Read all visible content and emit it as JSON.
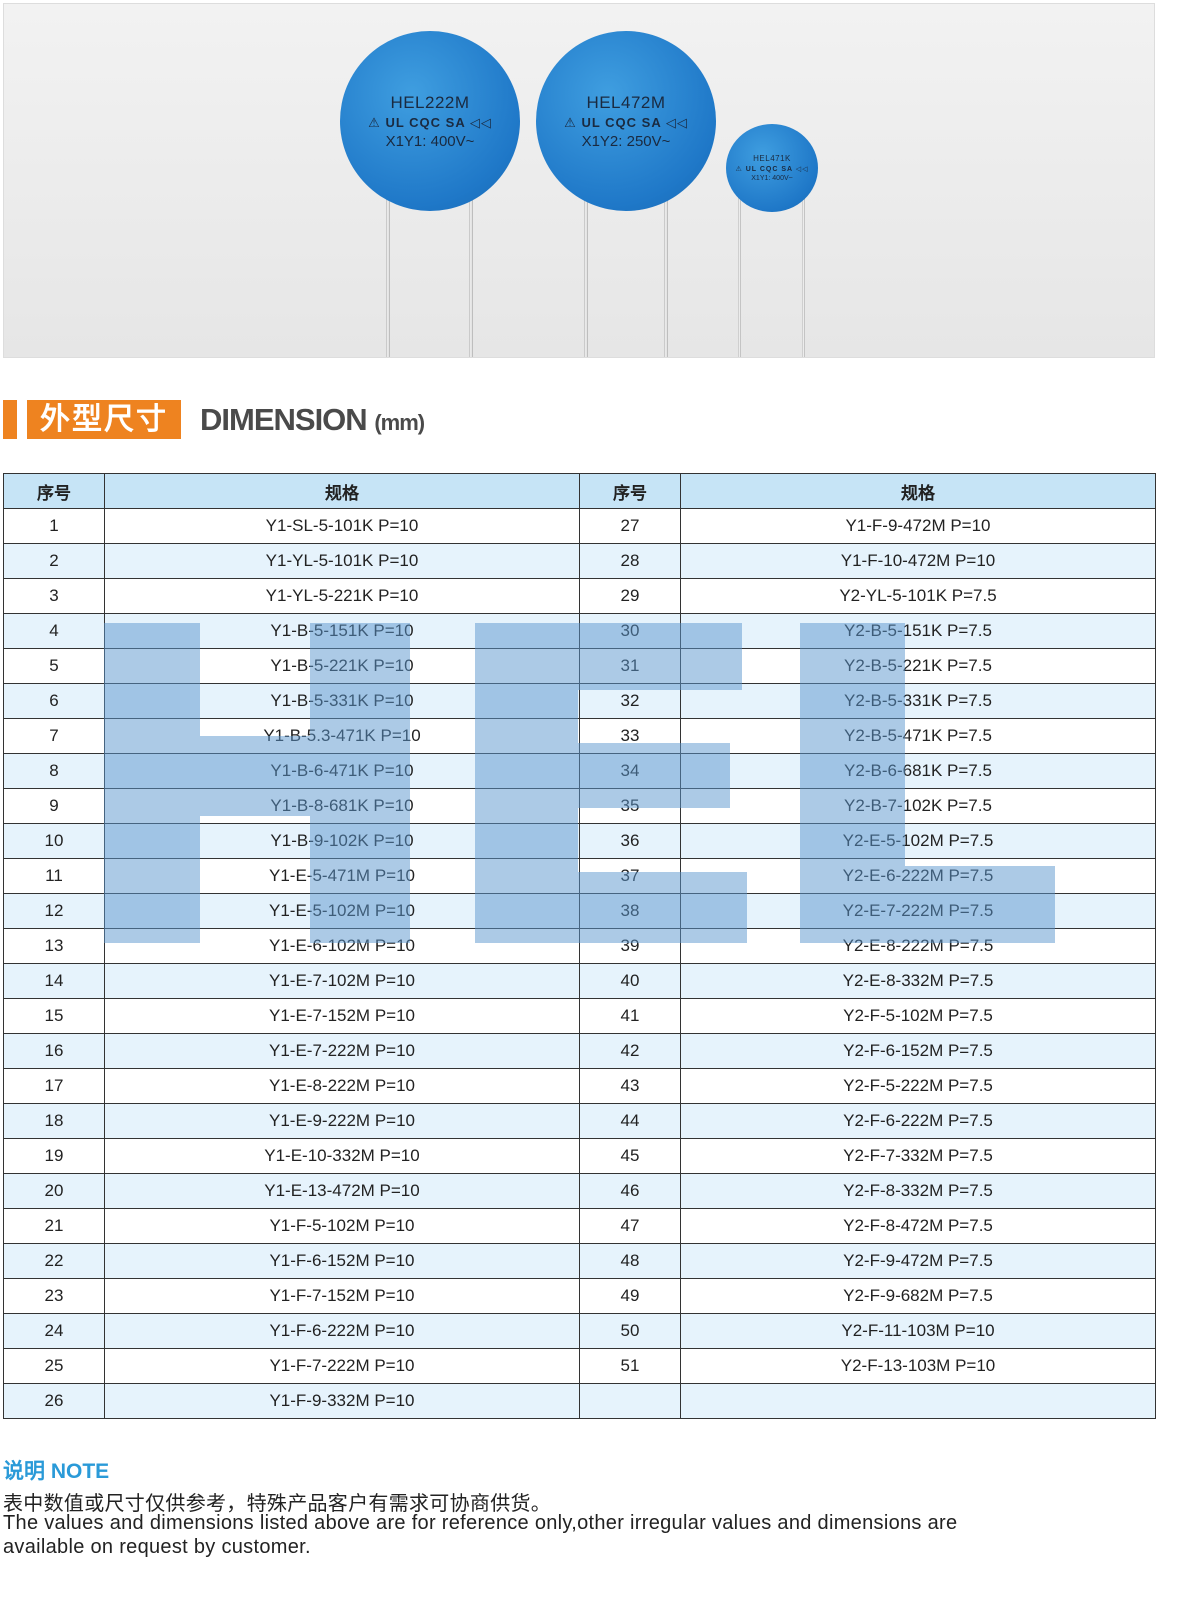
{
  "photo": {
    "capacitors": [
      {
        "line1": "HEL222M",
        "line2": "⚠ UL CQC SA ◁◁",
        "line3": "X1Y1: 400V~"
      },
      {
        "line1": "HEL472M",
        "line2": "⚠ UL CQC SA ◁◁",
        "line3": "X1Y2: 250V~"
      },
      {
        "line1": "HEL471K",
        "line2": "⚠ UL CQC SA ◁◁",
        "line3": "X1Y1: 400V~"
      }
    ],
    "color": "#1f78c8"
  },
  "title": {
    "cn": "外型尺寸",
    "en": "DIMENSION",
    "unit": "(mm)",
    "accent": "#ee8320"
  },
  "table": {
    "headers": [
      "序号",
      "规格",
      "序号",
      "规格"
    ],
    "left": [
      [
        "1",
        "Y1-SL-5-101K P=10"
      ],
      [
        "2",
        "Y1-YL-5-101K P=10"
      ],
      [
        "3",
        "Y1-YL-5-221K P=10"
      ],
      [
        "4",
        "Y1-B-5-151K P=10"
      ],
      [
        "5",
        "Y1-B-5-221K P=10"
      ],
      [
        "6",
        "Y1-B-5-331K P=10"
      ],
      [
        "7",
        "Y1-B-5.3-471K P=10"
      ],
      [
        "8",
        "Y1-B-6-471K P=10"
      ],
      [
        "9",
        "Y1-B-8-681K P=10"
      ],
      [
        "10",
        "Y1-B-9-102K P=10"
      ],
      [
        "11",
        "Y1-E-5-471M P=10"
      ],
      [
        "12",
        "Y1-E-5-102M P=10"
      ],
      [
        "13",
        "Y1-E-6-102M P=10"
      ],
      [
        "14",
        "Y1-E-7-102M P=10"
      ],
      [
        "15",
        "Y1-E-7-152M P=10"
      ],
      [
        "16",
        "Y1-E-7-222M P=10"
      ],
      [
        "17",
        "Y1-E-8-222M P=10"
      ],
      [
        "18",
        "Y1-E-9-222M P=10"
      ],
      [
        "19",
        "Y1-E-10-332M P=10"
      ],
      [
        "20",
        "Y1-E-13-472M P=10"
      ],
      [
        "21",
        "Y1-F-5-102M P=10"
      ],
      [
        "22",
        "Y1-F-6-152M P=10"
      ],
      [
        "23",
        "Y1-F-7-152M P=10"
      ],
      [
        "24",
        "Y1-F-6-222M P=10"
      ],
      [
        "25",
        "Y1-F-7-222M P=10"
      ],
      [
        "26",
        "Y1-F-9-332M P=10"
      ]
    ],
    "right": [
      [
        "27",
        "Y1-F-9-472M P=10"
      ],
      [
        "28",
        "Y1-F-10-472M P=10"
      ],
      [
        "29",
        "Y2-YL-5-101K P=7.5"
      ],
      [
        "30",
        "Y2-B-5-151K P=7.5"
      ],
      [
        "31",
        "Y2-B-5-221K P=7.5"
      ],
      [
        "32",
        "Y2-B-5-331K P=7.5"
      ],
      [
        "33",
        "Y2-B-5-471K P=7.5"
      ],
      [
        "34",
        "Y2-B-6-681K P=7.5"
      ],
      [
        "35",
        "Y2-B-7-102K P=7.5"
      ],
      [
        "36",
        "Y2-E-5-102M P=7.5"
      ],
      [
        "37",
        "Y2-E-6-222M P=7.5"
      ],
      [
        "38",
        "Y2-E-7-222M P=7.5"
      ],
      [
        "39",
        "Y2-E-8-222M P=7.5"
      ],
      [
        "40",
        "Y2-E-8-332M P=7.5"
      ],
      [
        "41",
        "Y2-F-5-102M P=7.5"
      ],
      [
        "42",
        "Y2-F-6-152M P=7.5"
      ],
      [
        "43",
        "Y2-F-5-222M P=7.5"
      ],
      [
        "44",
        "Y2-F-6-222M P=7.5"
      ],
      [
        "45",
        "Y2-F-7-332M P=7.5"
      ],
      [
        "46",
        "Y2-F-8-332M P=7.5"
      ],
      [
        "47",
        "Y2-F-8-472M P=7.5"
      ],
      [
        "48",
        "Y2-F-9-472M P=7.5"
      ],
      [
        "49",
        "Y2-F-9-682M P=7.5"
      ],
      [
        "50",
        "Y2-F-11-103M P=10"
      ],
      [
        "51",
        "Y2-F-13-103M P=10"
      ],
      [
        "",
        ""
      ]
    ],
    "header_color": "#c6e4f6",
    "stripe_color": "#e6f3fc"
  },
  "watermark": {
    "text": "HEL",
    "color": "#5a96cd"
  },
  "note": {
    "heading": "说明 NOTE",
    "cn": "表中数值或尺寸仅供参考，特殊产品客户有需求可协商供货。",
    "en_line1": "The values and dimensions listed above are for reference only,other irregular values and dimensions are",
    "en_line2": "available on request  by customer."
  }
}
